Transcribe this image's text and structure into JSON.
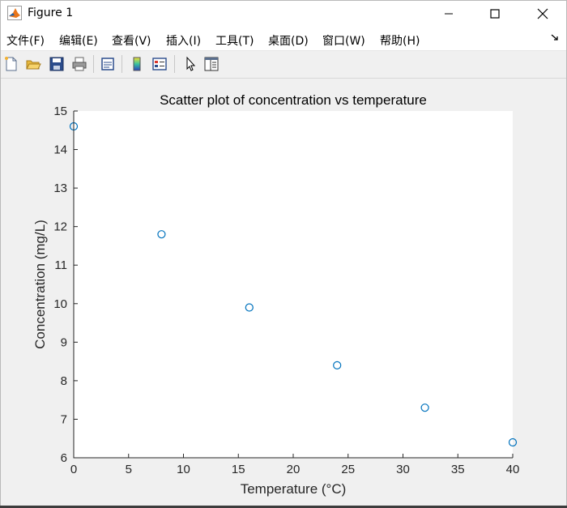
{
  "window": {
    "title": "Figure 1",
    "icon": "matlab-icon",
    "controls": [
      "minimize-icon",
      "maximize-icon",
      "close-icon"
    ]
  },
  "menu": {
    "items": [
      {
        "label": "文件(F)"
      },
      {
        "label": "编辑(E)"
      },
      {
        "label": "查看(V)"
      },
      {
        "label": "插入(I)"
      },
      {
        "label": "工具(T)"
      },
      {
        "label": "桌面(D)"
      },
      {
        "label": "窗口(W)"
      },
      {
        "label": "帮助(H)"
      }
    ],
    "overflow_icon": "dock-arrow-icon"
  },
  "toolbar": {
    "buttons": [
      "new-figure-icon",
      "open-file-icon",
      "save-icon",
      "print-icon",
      "print-preview-icon",
      "colorbar-icon",
      "legend-icon",
      "pointer-icon",
      "property-editor-icon"
    ]
  },
  "chart_data": {
    "type": "scatter",
    "title": "Scatter plot of concentration vs temperature",
    "xlabel": "Temperature (°C)",
    "ylabel": "Concentration (mg/L)",
    "xlim": [
      0,
      40
    ],
    "ylim": [
      6,
      15
    ],
    "xticks": [
      0,
      5,
      10,
      15,
      20,
      25,
      30,
      35,
      40
    ],
    "yticks": [
      6,
      7,
      8,
      9,
      10,
      11,
      12,
      13,
      14,
      15
    ],
    "grid": false,
    "legend": "none",
    "marker": "circle-open",
    "marker_color": "#0072bd",
    "x": [
      0,
      8,
      16,
      24,
      32,
      40
    ],
    "y": [
      14.6,
      11.8,
      9.9,
      8.4,
      7.3,
      6.4
    ]
  }
}
